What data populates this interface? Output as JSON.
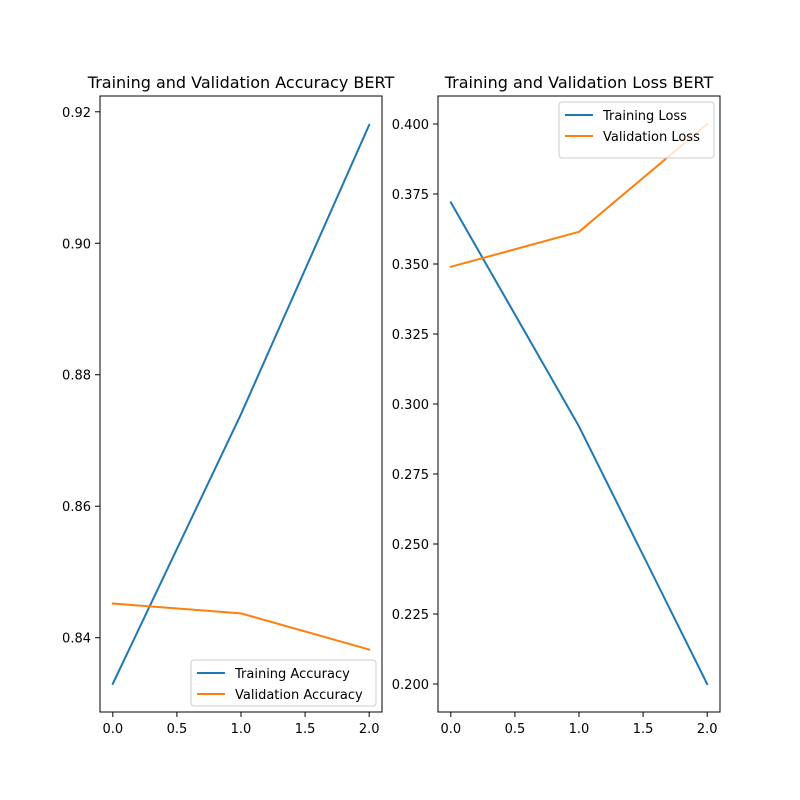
{
  "chart_data": [
    {
      "type": "line",
      "title": "Training and Validation Accuracy BERT",
      "xlabel": "",
      "ylabel": "",
      "x": [
        0,
        1,
        2
      ],
      "xlim": [
        -0.1,
        2.1
      ],
      "ylim": [
        0.8287,
        0.9224
      ],
      "xticks": [
        0.0,
        0.5,
        1.0,
        1.5,
        2.0
      ],
      "xtick_labels": [
        "0.0",
        "0.5",
        "1.0",
        "1.5",
        "2.0"
      ],
      "yticks": [
        0.84,
        0.86,
        0.88,
        0.9,
        0.92
      ],
      "ytick_labels": [
        "0.84",
        "0.86",
        "0.88",
        "0.90",
        "0.92"
      ],
      "grid": false,
      "legend_position": "lower-right",
      "series": [
        {
          "name": "Training Accuracy",
          "color": "#1f77b4",
          "values": [
            0.833,
            0.874,
            0.918
          ]
        },
        {
          "name": "Validation Accuracy",
          "color": "#ff7f0e",
          "values": [
            0.8452,
            0.8437,
            0.8382
          ]
        }
      ]
    },
    {
      "type": "line",
      "title": "Training and Validation Loss BERT",
      "xlabel": "",
      "ylabel": "",
      "x": [
        0,
        1,
        2
      ],
      "xlim": [
        -0.1,
        2.1
      ],
      "ylim": [
        0.19,
        0.41
      ],
      "xticks": [
        0.0,
        0.5,
        1.0,
        1.5,
        2.0
      ],
      "xtick_labels": [
        "0.0",
        "0.5",
        "1.0",
        "1.5",
        "2.0"
      ],
      "yticks": [
        0.2,
        0.225,
        0.25,
        0.275,
        0.3,
        0.325,
        0.35,
        0.375,
        0.4
      ],
      "ytick_labels": [
        "0.200",
        "0.225",
        "0.250",
        "0.275",
        "0.300",
        "0.325",
        "0.350",
        "0.375",
        "0.400"
      ],
      "grid": false,
      "legend_position": "upper-right",
      "series": [
        {
          "name": "Training Loss",
          "color": "#1f77b4",
          "values": [
            0.372,
            0.292,
            0.2
          ]
        },
        {
          "name": "Validation Loss",
          "color": "#ff7f0e",
          "values": [
            0.349,
            0.3615,
            0.4
          ]
        }
      ]
    }
  ]
}
